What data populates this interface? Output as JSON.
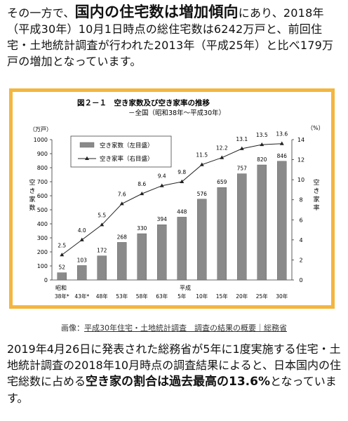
{
  "intro": {
    "p1": "その一方で、",
    "p2": "国内の住宅数は増加傾向",
    "p3": "にあり、2018年（平成30年）10月1日時点の総住宅数は6242万戸と、前回住宅・土地統計調査が行われた2013年（平成25年）と比べ179万戸の増加となっています。"
  },
  "figure": {
    "title": "図２－１　空き家数及び空き家率の推移",
    "subtitle": "－全国（昭和38年～平成30年）",
    "left_unit": "（万戸）",
    "right_unit": "（%）",
    "left_axis_label": [
      "空",
      "き",
      "家",
      "数"
    ],
    "right_axis_label": [
      "空",
      "き",
      "家",
      "率"
    ],
    "era_showa": "昭和",
    "era_heisei": "平成"
  },
  "chart_data": {
    "type": "bar",
    "categories": [
      "38年*",
      "43年*",
      "48年",
      "53年",
      "58年",
      "63年",
      "5年",
      "10年",
      "15年",
      "20年",
      "25年",
      "30年"
    ],
    "series": [
      {
        "name": "空き家数（左目盛）",
        "type": "bar",
        "values": [
          52,
          103,
          172,
          268,
          330,
          394,
          448,
          576,
          659,
          757,
          820,
          846
        ]
      },
      {
        "name": "空き家率（右目盛）",
        "type": "line",
        "values": [
          2.5,
          4.0,
          5.5,
          7.6,
          8.6,
          9.4,
          9.8,
          11.5,
          12.2,
          13.1,
          13.5,
          13.6
        ]
      }
    ],
    "y_left": {
      "min": 0,
      "max": 1000,
      "ticks": [
        0,
        100,
        200,
        300,
        400,
        500,
        600,
        700,
        800,
        900,
        1000
      ]
    },
    "y_right": {
      "min": 0,
      "max": 14,
      "ticks": [
        0,
        2,
        4,
        6,
        8,
        10,
        12,
        14
      ]
    },
    "legend_position": "top-left",
    "colors": {
      "bar": "#8a8a8a",
      "line": "#222222"
    }
  },
  "caption": {
    "prefix": "画像：",
    "link": "平成30年住宅・土地統計調査　調査の結果の概要｜総務省"
  },
  "outro": {
    "p1": "2019年4月26日に発表された総務省が5年に1度実施する住宅・土地統計調査の2018年10月時点の調査結果によると、日本国内の住宅総数に占める",
    "p2": "空き家の割合は過去最高の13.6%",
    "p3": "となっています。"
  },
  "frame_color": "#f3b63f"
}
